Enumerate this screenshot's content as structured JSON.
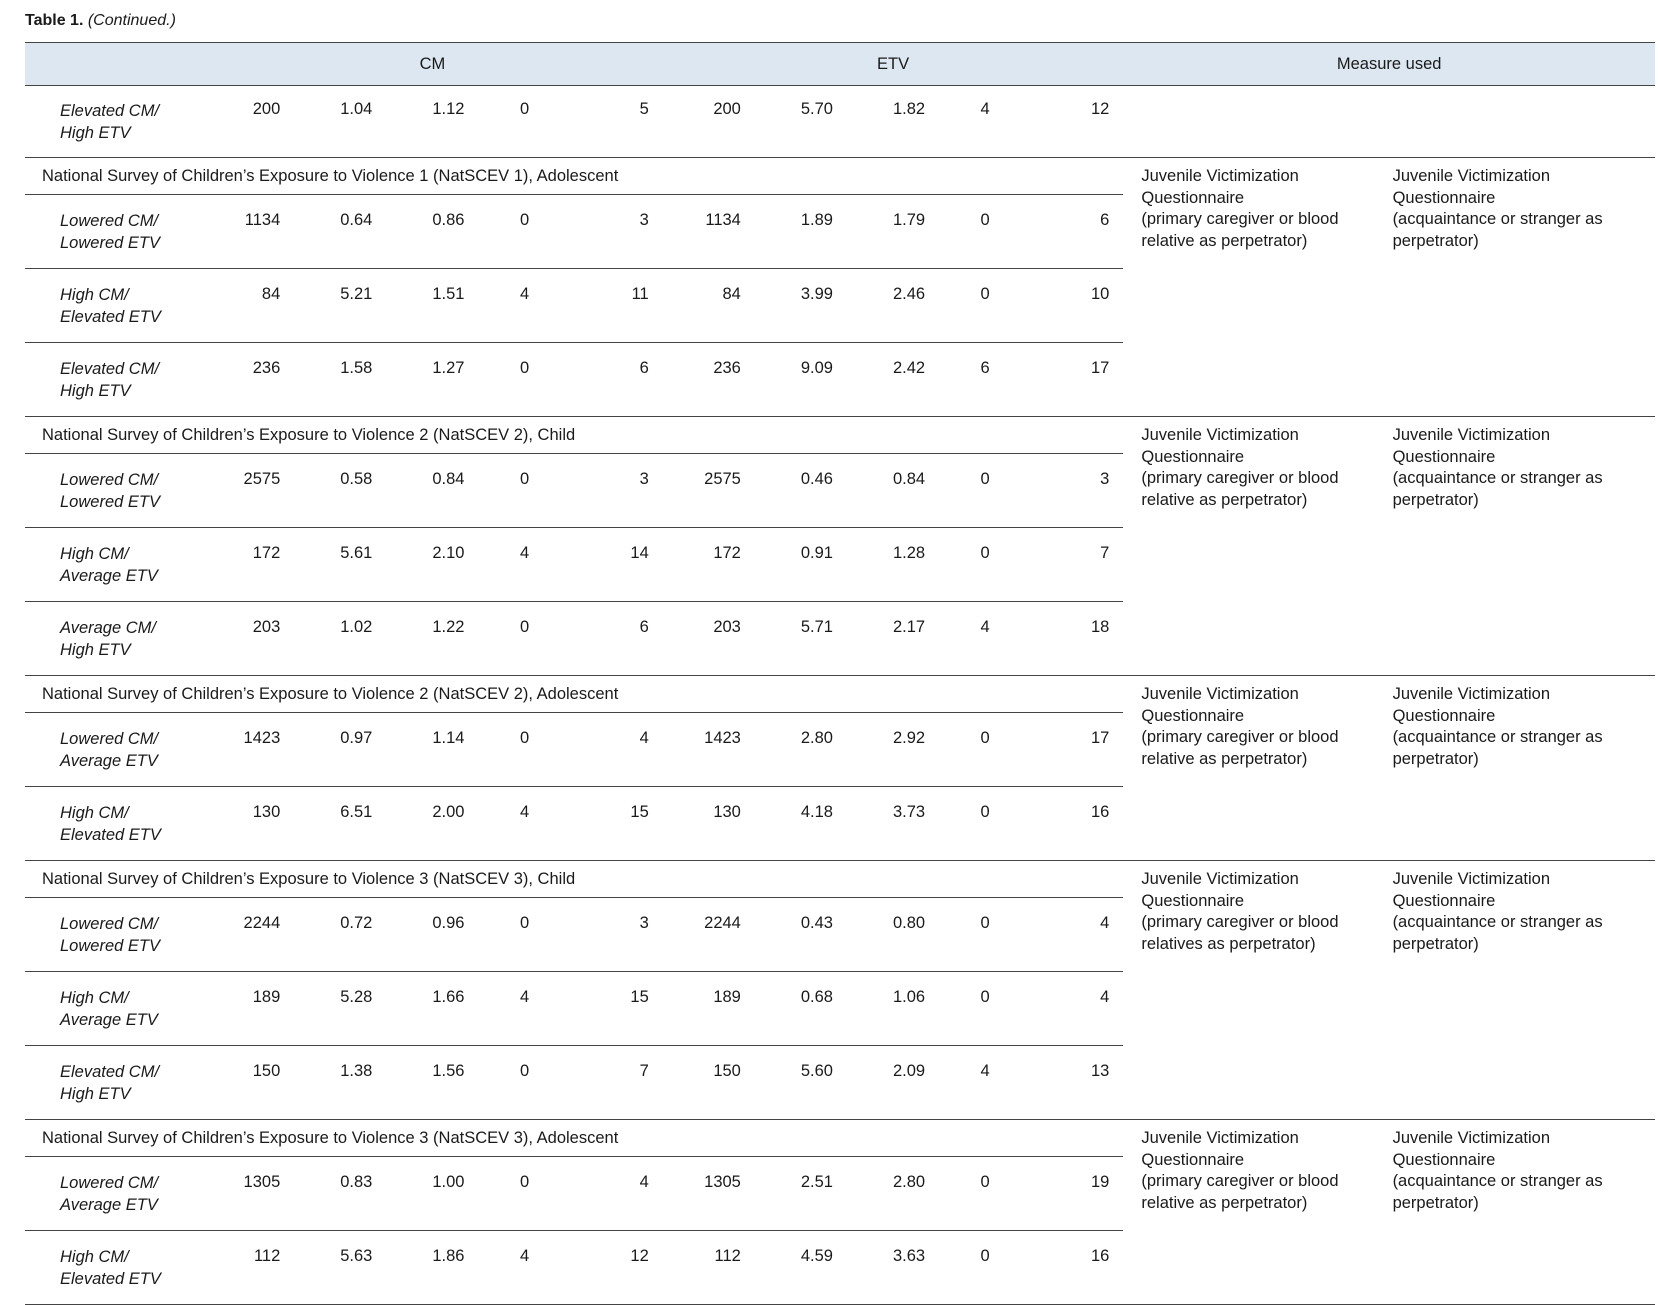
{
  "caption": {
    "label": "Table 1.",
    "continued": "(Continued.)"
  },
  "header": {
    "cm": "CM",
    "etv": "ETV",
    "measure": "Measure used"
  },
  "top_rows": [
    {
      "label1": "Elevated CM/",
      "label2": "High ETV",
      "v": [
        "200",
        "1.04",
        "1.12",
        "0",
        "5",
        "200",
        "5.70",
        "1.82",
        "4",
        "12"
      ]
    }
  ],
  "groups": [
    {
      "title": "National Survey of Children’s Exposure to Violence 1 (NatSCEV 1), Adolescent",
      "measure1": [
        "Juvenile Victimization",
        "Questionnaire",
        "(primary caregiver or blood",
        "relative as perpetrator)"
      ],
      "measure2": [
        "Juvenile Victimization",
        "Questionnaire",
        "(acquaintance or stranger as",
        "perpetrator)"
      ],
      "rows": [
        {
          "label1": "Lowered CM/",
          "label2": "Lowered ETV",
          "v": [
            "1134",
            "0.64",
            "0.86",
            "0",
            "3",
            "1134",
            "1.89",
            "1.79",
            "0",
            "6"
          ]
        },
        {
          "label1": "High CM/",
          "label2": "Elevated ETV",
          "v": [
            "84",
            "5.21",
            "1.51",
            "4",
            "11",
            "84",
            "3.99",
            "2.46",
            "0",
            "10"
          ]
        },
        {
          "label1": "Elevated CM/",
          "label2": "High ETV",
          "v": [
            "236",
            "1.58",
            "1.27",
            "0",
            "6",
            "236",
            "9.09",
            "2.42",
            "6",
            "17"
          ]
        }
      ]
    },
    {
      "title": "National Survey of Children’s Exposure to Violence 2 (NatSCEV 2), Child",
      "measure1": [
        "Juvenile Victimization",
        "Questionnaire",
        "(primary caregiver or blood",
        "relative as perpetrator)"
      ],
      "measure2": [
        "Juvenile Victimization",
        "Questionnaire",
        "(acquaintance or stranger as",
        "perpetrator)"
      ],
      "rows": [
        {
          "label1": "Lowered CM/",
          "label2": "Lowered ETV",
          "v": [
            "2575",
            "0.58",
            "0.84",
            "0",
            "3",
            "2575",
            "0.46",
            "0.84",
            "0",
            "3"
          ]
        },
        {
          "label1": "High CM/",
          "label2": "Average ETV",
          "v": [
            "172",
            "5.61",
            "2.10",
            "4",
            "14",
            "172",
            "0.91",
            "1.28",
            "0",
            "7"
          ]
        },
        {
          "label1": "Average CM/",
          "label2": "High ETV",
          "v": [
            "203",
            "1.02",
            "1.22",
            "0",
            "6",
            "203",
            "5.71",
            "2.17",
            "4",
            "18"
          ]
        }
      ]
    },
    {
      "title": "National Survey of Children’s Exposure to Violence 2 (NatSCEV 2), Adolescent",
      "measure1": [
        "Juvenile Victimization",
        "Questionnaire",
        "(primary caregiver or blood",
        "relative as perpetrator)"
      ],
      "measure2": [
        "Juvenile Victimization",
        "Questionnaire",
        "(acquaintance or stranger as",
        "perpetrator)"
      ],
      "rows": [
        {
          "label1": "Lowered CM/",
          "label2": "Average ETV",
          "v": [
            "1423",
            "0.97",
            "1.14",
            "0",
            "4",
            "1423",
            "2.80",
            "2.92",
            "0",
            "17"
          ]
        },
        {
          "label1": "High CM/",
          "label2": "Elevated ETV",
          "v": [
            "130",
            "6.51",
            "2.00",
            "4",
            "15",
            "130",
            "4.18",
            "3.73",
            "0",
            "16"
          ]
        }
      ]
    },
    {
      "title": "National Survey of Children’s Exposure to Violence 3 (NatSCEV 3), Child",
      "measure1": [
        "Juvenile Victimization",
        "Questionnaire",
        "(primary caregiver or blood",
        "relatives as perpetrator)"
      ],
      "measure2": [
        "Juvenile Victimization",
        "Questionnaire",
        "(acquaintance or stranger as",
        "perpetrator)"
      ],
      "rows": [
        {
          "label1": "Lowered CM/",
          "label2": "Lowered ETV",
          "v": [
            "2244",
            "0.72",
            "0.96",
            "0",
            "3",
            "2244",
            "0.43",
            "0.80",
            "0",
            "4"
          ]
        },
        {
          "label1": "High CM/",
          "label2": "Average ETV",
          "v": [
            "189",
            "5.28",
            "1.66",
            "4",
            "15",
            "189",
            "0.68",
            "1.06",
            "0",
            "4"
          ]
        },
        {
          "label1": "Elevated CM/",
          "label2": "High ETV",
          "v": [
            "150",
            "1.38",
            "1.56",
            "0",
            "7",
            "150",
            "5.60",
            "2.09",
            "4",
            "13"
          ]
        }
      ]
    },
    {
      "title": "National Survey of Children’s Exposure to Violence 3 (NatSCEV 3), Adolescent",
      "measure1": [
        "Juvenile Victimization",
        "Questionnaire",
        "(primary caregiver or blood",
        "relative as perpetrator)"
      ],
      "measure2": [
        "Juvenile Victimization",
        "Questionnaire",
        "(acquaintance or stranger as",
        "perpetrator)"
      ],
      "rows": [
        {
          "label1": "Lowered CM/",
          "label2": "Average ETV",
          "v": [
            "1305",
            "0.83",
            "1.00",
            "0",
            "4",
            "1305",
            "2.51",
            "2.80",
            "0",
            "19"
          ]
        },
        {
          "label1": "High CM/",
          "label2": "Elevated ETV",
          "v": [
            "112",
            "5.63",
            "1.86",
            "4",
            "12",
            "112",
            "4.59",
            "3.63",
            "0",
            "16"
          ]
        }
      ]
    }
  ]
}
